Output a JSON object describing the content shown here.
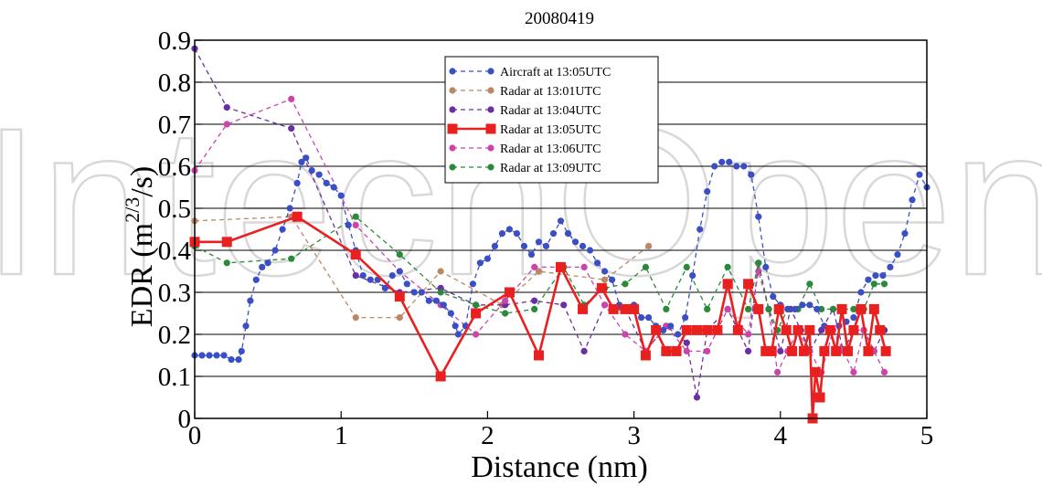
{
  "chart_data": {
    "type": "line",
    "title": "20080419",
    "xlabel": "Distance (nm)",
    "ylabel": "EDR (m",
    "ylabel_sup": "2/3",
    "ylabel_tail": "/s)",
    "xlim": [
      0,
      5
    ],
    "ylim": [
      0,
      0.9
    ],
    "x_ticks": [
      "0",
      "1",
      "2",
      "3",
      "4",
      "5"
    ],
    "y_ticks": [
      "0",
      "0.1",
      "0.2",
      "0.3",
      "0.4",
      "0.5",
      "0.6",
      "0.7",
      "0.8",
      "0.9"
    ],
    "grid": "horizontal",
    "legend_position": "top-center",
    "watermark_text": "IntechOpen",
    "series": [
      {
        "name": "Aircraft at 13:05UTC",
        "color": "#3a4fc4",
        "marker": "circle",
        "line": "dashed",
        "x": [
          0,
          0.05,
          0.1,
          0.15,
          0.2,
          0.25,
          0.3,
          0.32,
          0.35,
          0.38,
          0.42,
          0.46,
          0.5,
          0.55,
          0.6,
          0.65,
          0.7,
          0.73,
          0.76,
          0.8,
          0.85,
          0.9,
          0.95,
          1.0,
          1.05,
          1.1,
          1.15,
          1.2,
          1.25,
          1.3,
          1.35,
          1.4,
          1.45,
          1.5,
          1.55,
          1.6,
          1.65,
          1.7,
          1.75,
          1.78,
          1.8,
          1.85,
          1.9,
          1.95,
          2.0,
          2.05,
          2.1,
          2.15,
          2.2,
          2.25,
          2.3,
          2.35,
          2.4,
          2.45,
          2.5,
          2.55,
          2.6,
          2.65,
          2.7,
          2.75,
          2.8,
          2.85,
          2.9,
          2.95,
          3.0,
          3.05,
          3.1,
          3.15,
          3.2,
          3.25,
          3.3,
          3.35,
          3.4,
          3.45,
          3.5,
          3.55,
          3.6,
          3.65,
          3.7,
          3.75,
          3.8,
          3.85,
          3.9,
          3.95,
          4.0,
          4.05,
          4.1,
          4.15,
          4.2,
          4.25,
          4.3,
          4.35,
          4.4,
          4.45,
          4.5,
          4.55,
          4.6,
          4.65,
          4.7,
          4.75,
          4.8,
          4.85,
          4.9,
          4.95,
          5.0
        ],
        "y": [
          0.15,
          0.15,
          0.15,
          0.15,
          0.15,
          0.14,
          0.14,
          0.16,
          0.22,
          0.28,
          0.33,
          0.36,
          0.37,
          0.4,
          0.45,
          0.5,
          0.56,
          0.61,
          0.62,
          0.59,
          0.58,
          0.56,
          0.55,
          0.53,
          0.46,
          0.4,
          0.34,
          0.33,
          0.33,
          0.31,
          0.34,
          0.35,
          0.32,
          0.3,
          0.3,
          0.28,
          0.28,
          0.27,
          0.25,
          0.22,
          0.2,
          0.22,
          0.32,
          0.37,
          0.38,
          0.41,
          0.44,
          0.45,
          0.44,
          0.41,
          0.39,
          0.42,
          0.41,
          0.44,
          0.47,
          0.44,
          0.42,
          0.41,
          0.4,
          0.37,
          0.35,
          0.33,
          0.27,
          0.26,
          0.27,
          0.24,
          0.24,
          0.22,
          0.21,
          0.22,
          0.2,
          0.24,
          0.34,
          0.45,
          0.54,
          0.6,
          0.61,
          0.61,
          0.6,
          0.6,
          0.58,
          0.48,
          0.36,
          0.29,
          0.27,
          0.26,
          0.26,
          0.27,
          0.27,
          0.26,
          0.22,
          0.21,
          0.22,
          0.23,
          0.24,
          0.3,
          0.33,
          0.34,
          0.34,
          0.36,
          0.39,
          0.44,
          0.52,
          0.58,
          0.55
        ]
      },
      {
        "name": "Radar at 13:01UTC",
        "color": "#bb8866",
        "marker": "circle",
        "line": "dashed",
        "x": [
          0,
          0.66,
          1.1,
          1.4,
          1.68,
          2.1,
          2.35,
          2.8,
          3.1
        ],
        "y": [
          0.47,
          0.48,
          0.24,
          0.24,
          0.35,
          0.27,
          0.35,
          0.33,
          0.41
        ]
      },
      {
        "name": "Radar at 13:04UTC",
        "color": "#6a2fa4",
        "marker": "circle",
        "line": "dashed",
        "x": [
          0,
          0.22,
          0.66,
          1.1,
          1.4,
          1.68,
          1.92,
          2.12,
          2.32,
          2.52,
          2.66,
          2.8,
          2.94,
          3.08,
          3.22,
          3.36,
          3.43,
          3.5,
          3.64,
          3.78,
          3.85,
          3.92,
          4.0,
          4.07,
          4.14,
          4.2,
          4.28,
          4.36,
          4.43,
          4.5,
          4.57,
          4.64,
          4.71
        ],
        "y": [
          0.88,
          0.74,
          0.69,
          0.34,
          0.3,
          0.31,
          0.27,
          0.27,
          0.28,
          0.27,
          0.16,
          0.27,
          0.26,
          0.16,
          0.22,
          0.18,
          0.05,
          0.21,
          0.26,
          0.16,
          0.37,
          0.26,
          0.16,
          0.26,
          0.21,
          0.16,
          0.21,
          0.26,
          0.16,
          0.21,
          0.21,
          0.16,
          0.21
        ]
      },
      {
        "name": "Radar at 13:05UTC",
        "color": "#e82020",
        "marker": "square",
        "line": "solid",
        "x": [
          0,
          0.22,
          0.7,
          1.1,
          1.4,
          1.68,
          1.92,
          2.15,
          2.35,
          2.5,
          2.65,
          2.78,
          2.86,
          2.94,
          3.0,
          3.08,
          3.15,
          3.22,
          3.29,
          3.36,
          3.43,
          3.5,
          3.57,
          3.64,
          3.71,
          3.78,
          3.85,
          3.9,
          3.94,
          3.99,
          4.04,
          4.08,
          4.12,
          4.16,
          4.2,
          4.22,
          4.24,
          4.27,
          4.3,
          4.34,
          4.38,
          4.42,
          4.46,
          4.5,
          4.55,
          4.6,
          4.64,
          4.68,
          4.72
        ],
        "y": [
          0.42,
          0.42,
          0.48,
          0.39,
          0.29,
          0.1,
          0.25,
          0.3,
          0.15,
          0.36,
          0.26,
          0.31,
          0.26,
          0.26,
          0.26,
          0.15,
          0.21,
          0.16,
          0.16,
          0.21,
          0.21,
          0.21,
          0.21,
          0.32,
          0.21,
          0.32,
          0.26,
          0.16,
          0.16,
          0.26,
          0.21,
          0.16,
          0.21,
          0.16,
          0.21,
          0.0,
          0.11,
          0.05,
          0.16,
          0.21,
          0.16,
          0.26,
          0.16,
          0.21,
          0.26,
          0.16,
          0.26,
          0.21,
          0.16
        ]
      },
      {
        "name": "Radar at 13:06UTC",
        "color": "#cc44aa",
        "marker": "circle",
        "line": "dashed",
        "x": [
          0,
          0.22,
          0.66,
          1.1,
          1.4,
          1.68,
          1.92,
          2.12,
          2.32,
          2.52,
          2.66,
          2.8,
          2.94,
          3.08,
          3.22,
          3.36,
          3.5,
          3.64,
          3.78,
          3.85,
          3.92,
          3.98,
          4.05,
          4.12,
          4.2,
          4.28,
          4.36,
          4.43,
          4.5,
          4.57,
          4.64,
          4.71
        ],
        "y": [
          0.59,
          0.7,
          0.76,
          0.46,
          0.35,
          0.27,
          0.2,
          0.28,
          0.36,
          0.36,
          0.36,
          0.27,
          0.2,
          0.16,
          0.22,
          0.16,
          0.16,
          0.26,
          0.2,
          0.35,
          0.26,
          0.11,
          0.16,
          0.21,
          0.16,
          0.11,
          0.21,
          0.16,
          0.11,
          0.21,
          0.16,
          0.11
        ]
      },
      {
        "name": "Radar at 13:09UTC",
        "color": "#2a8a3a",
        "marker": "circle",
        "line": "dashed",
        "x": [
          0,
          0.22,
          0.66,
          1.1,
          1.4,
          1.68,
          1.92,
          2.12,
          2.32,
          2.52,
          2.66,
          2.8,
          2.94,
          3.08,
          3.22,
          3.36,
          3.5,
          3.64,
          3.78,
          3.85,
          3.92,
          3.98,
          4.05,
          4.12,
          4.2,
          4.28,
          4.36,
          4.43,
          4.5,
          4.57,
          4.64,
          4.71
        ],
        "y": [
          0.41,
          0.37,
          0.38,
          0.48,
          0.39,
          0.3,
          0.27,
          0.25,
          0.26,
          0.36,
          0.27,
          0.31,
          0.32,
          0.36,
          0.26,
          0.36,
          0.26,
          0.36,
          0.26,
          0.37,
          0.26,
          0.21,
          0.26,
          0.26,
          0.32,
          0.26,
          0.26,
          0.26,
          0.26,
          0.26,
          0.32,
          0.32
        ]
      }
    ]
  }
}
